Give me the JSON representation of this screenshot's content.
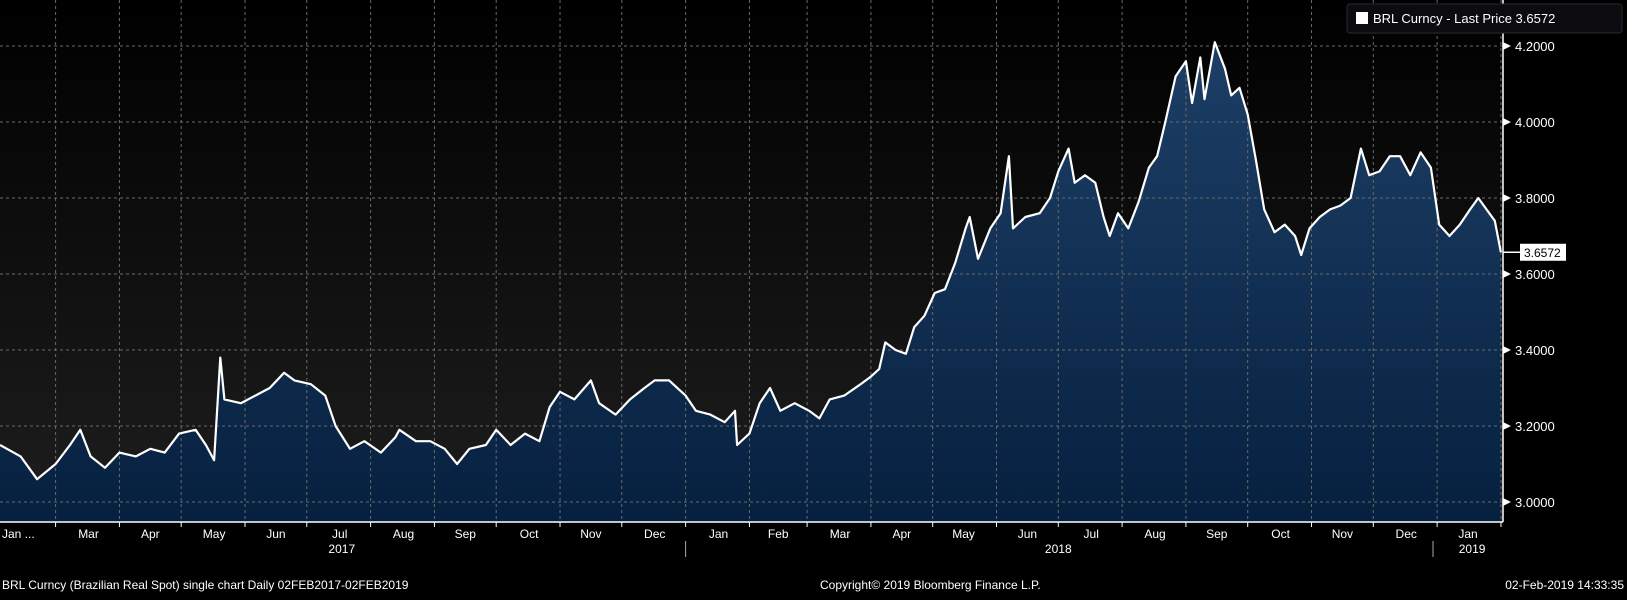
{
  "chart_data": {
    "type": "area",
    "title": "BRL Curncy (Brazilian Real Spot) single chart",
    "frequency": "Daily",
    "range": "02FEB2017-02FEB2019",
    "legend": {
      "label": "BRL Curncy - Last Price 3.6572",
      "placement": "top-right"
    },
    "last_price_label": "3.6572",
    "last_price": 3.6572,
    "x_unit": "days since 02-Feb-2017",
    "xlim": [
      0,
      730
    ],
    "ylim": [
      2.95,
      4.26
    ],
    "grid": true,
    "y_ticks": [
      {
        "value": 3.0,
        "label": "3.0000"
      },
      {
        "value": 3.2,
        "label": "3.2000"
      },
      {
        "value": 3.4,
        "label": "3.4000"
      },
      {
        "value": 3.6,
        "label": "3.6000"
      },
      {
        "value": 3.8,
        "label": "3.8000"
      },
      {
        "value": 4.0,
        "label": "4.0000"
      },
      {
        "value": 4.2,
        "label": "4.2000"
      }
    ],
    "month_boundaries": [
      27,
      58,
      88,
      119,
      149,
      180,
      211,
      241,
      272,
      302,
      333,
      364,
      392,
      423,
      453,
      484,
      514,
      545,
      576,
      606,
      637,
      667,
      698,
      729
    ],
    "month_labels": [
      {
        "label": "Jan ...",
        "day": 12
      },
      {
        "label": "Mar",
        "day": 43
      },
      {
        "label": "Apr",
        "day": 73
      },
      {
        "label": "May",
        "day": 104
      },
      {
        "label": "Jun",
        "day": 134
      },
      {
        "label": "Jul",
        "day": 165
      },
      {
        "label": "Aug",
        "day": 196
      },
      {
        "label": "Sep",
        "day": 226
      },
      {
        "label": "Oct",
        "day": 257
      },
      {
        "label": "Nov",
        "day": 287
      },
      {
        "label": "Dec",
        "day": 318
      },
      {
        "label": "Jan",
        "day": 349
      },
      {
        "label": "Feb",
        "day": 378
      },
      {
        "label": "Mar",
        "day": 408
      },
      {
        "label": "Apr",
        "day": 438
      },
      {
        "label": "May",
        "day": 468
      },
      {
        "label": "Jun",
        "day": 499
      },
      {
        "label": "Jul",
        "day": 530
      },
      {
        "label": "Aug",
        "day": 561
      },
      {
        "label": "Sep",
        "day": 591
      },
      {
        "label": "Oct",
        "day": 622
      },
      {
        "label": "Nov",
        "day": 652
      },
      {
        "label": "Dec",
        "day": 683
      },
      {
        "label": "Jan",
        "day": 713
      }
    ],
    "year_labels": [
      {
        "label": "2017",
        "day": 166
      },
      {
        "label": "2018",
        "day": 514
      },
      {
        "label": "2019",
        "day": 715
      }
    ],
    "year_separators": [
      333,
      696
    ],
    "x": [
      0,
      10,
      18,
      27,
      34,
      39,
      44,
      51,
      58,
      66,
      73,
      80,
      87,
      95,
      100,
      104,
      107,
      109,
      117,
      124,
      131,
      138,
      143,
      151,
      158,
      163,
      170,
      177,
      185,
      192,
      194,
      202,
      209,
      216,
      222,
      228,
      236,
      241,
      248,
      255,
      262,
      267,
      272,
      279,
      287,
      291,
      299,
      306,
      313,
      318,
      325,
      333,
      338,
      345,
      352,
      357,
      358,
      364,
      369,
      374,
      379,
      386,
      393,
      398,
      403,
      410,
      418,
      423,
      427,
      430,
      435,
      440,
      444,
      449,
      454,
      459,
      464,
      469,
      471,
      475,
      481,
      486,
      490,
      492,
      498,
      505,
      510,
      514,
      519,
      522,
      527,
      532,
      536,
      539,
      543,
      548,
      553,
      558,
      562,
      566,
      571,
      576,
      579,
      583,
      585,
      590,
      595,
      598,
      602,
      606,
      610,
      614,
      619,
      624,
      629,
      632,
      636,
      641,
      646,
      651,
      656,
      661,
      665,
      670,
      675,
      680,
      685,
      690,
      695,
      699,
      704,
      709,
      714,
      718,
      722,
      726,
      729
    ],
    "values": [
      3.15,
      3.12,
      3.06,
      3.1,
      3.15,
      3.19,
      3.12,
      3.09,
      3.13,
      3.12,
      3.14,
      3.13,
      3.18,
      3.19,
      3.15,
      3.11,
      3.38,
      3.27,
      3.26,
      3.28,
      3.3,
      3.34,
      3.32,
      3.31,
      3.28,
      3.2,
      3.14,
      3.16,
      3.13,
      3.17,
      3.19,
      3.16,
      3.16,
      3.14,
      3.1,
      3.14,
      3.15,
      3.19,
      3.15,
      3.18,
      3.16,
      3.25,
      3.29,
      3.27,
      3.32,
      3.26,
      3.23,
      3.27,
      3.3,
      3.32,
      3.32,
      3.28,
      3.24,
      3.23,
      3.21,
      3.24,
      3.15,
      3.18,
      3.26,
      3.3,
      3.24,
      3.26,
      3.24,
      3.22,
      3.27,
      3.28,
      3.31,
      3.33,
      3.35,
      3.42,
      3.4,
      3.39,
      3.46,
      3.49,
      3.55,
      3.56,
      3.63,
      3.72,
      3.75,
      3.64,
      3.72,
      3.76,
      3.91,
      3.72,
      3.75,
      3.76,
      3.8,
      3.87,
      3.93,
      3.84,
      3.86,
      3.84,
      3.75,
      3.7,
      3.76,
      3.72,
      3.79,
      3.88,
      3.91,
      4.0,
      4.12,
      4.16,
      4.05,
      4.17,
      4.06,
      4.21,
      4.14,
      4.07,
      4.09,
      4.02,
      3.9,
      3.77,
      3.71,
      3.73,
      3.7,
      3.65,
      3.72,
      3.75,
      3.77,
      3.78,
      3.8,
      3.93,
      3.86,
      3.87,
      3.91,
      3.91,
      3.86,
      3.92,
      3.88,
      3.73,
      3.7,
      3.73,
      3.77,
      3.8,
      3.77,
      3.74,
      3.6572
    ]
  },
  "footer": {
    "description": "BRL Curncy (Brazilian Real Spot) single chart  Daily 02FEB2017-02FEB2019",
    "copyright": "Copyright© 2019 Bloomberg Finance L.P.",
    "timestamp": "02-Feb-2019 14:33:35"
  },
  "colors": {
    "line": "#ffffff",
    "fill_top": "#1d3f66",
    "fill_bottom": "#06203f",
    "grid": "#6a6a6a"
  }
}
